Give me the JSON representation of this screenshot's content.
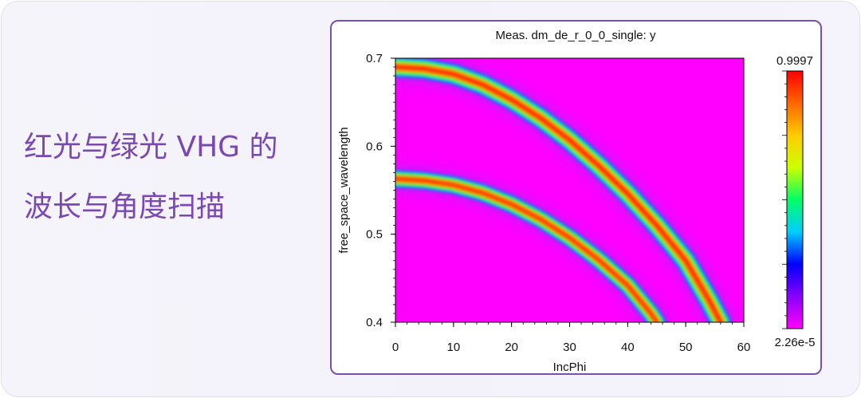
{
  "headline": {
    "line1": "红光与绿光 VHG 的",
    "line2": "波长与角度扫描"
  },
  "colors": {
    "accent_purple": "#7a47b3",
    "card_border": "#7b4fae"
  },
  "chart_data": {
    "type": "heatmap",
    "title": "Meas. dm_de_r_0_0_single:  y",
    "xlabel": "IncPhi",
    "ylabel": "free_space_wavelength",
    "xlim": [
      0,
      60
    ],
    "ylim": [
      0.4,
      0.7
    ],
    "x_ticks": [
      0,
      10,
      20,
      30,
      40,
      50,
      60
    ],
    "y_ticks": [
      0.4,
      0.5,
      0.6,
      0.7
    ],
    "colorbar": {
      "max_label": "0.9997",
      "min_label": "2.26e-5",
      "colormap": "rainbow",
      "stops": [
        "#ff00ff",
        "#8800ff",
        "#0000ff",
        "#00ccff",
        "#00ff66",
        "#ccff00",
        "#ffcc00",
        "#ff6600",
        "#ff0000"
      ]
    },
    "background_color": "#ff00ff",
    "series": [
      {
        "x": [
          0,
          5,
          10,
          15,
          20,
          25,
          30,
          35,
          40,
          45,
          50,
          54,
          56
        ],
        "y": [
          0.69,
          0.688,
          0.682,
          0.67,
          0.653,
          0.632,
          0.607,
          0.578,
          0.546,
          0.51,
          0.47,
          0.425,
          0.4
        ]
      },
      {
        "x": [
          0,
          5,
          10,
          15,
          20,
          25,
          30,
          35,
          40,
          44,
          45
        ],
        "y": [
          0.563,
          0.561,
          0.556,
          0.547,
          0.534,
          0.517,
          0.496,
          0.471,
          0.442,
          0.41,
          0.4
        ]
      }
    ]
  }
}
